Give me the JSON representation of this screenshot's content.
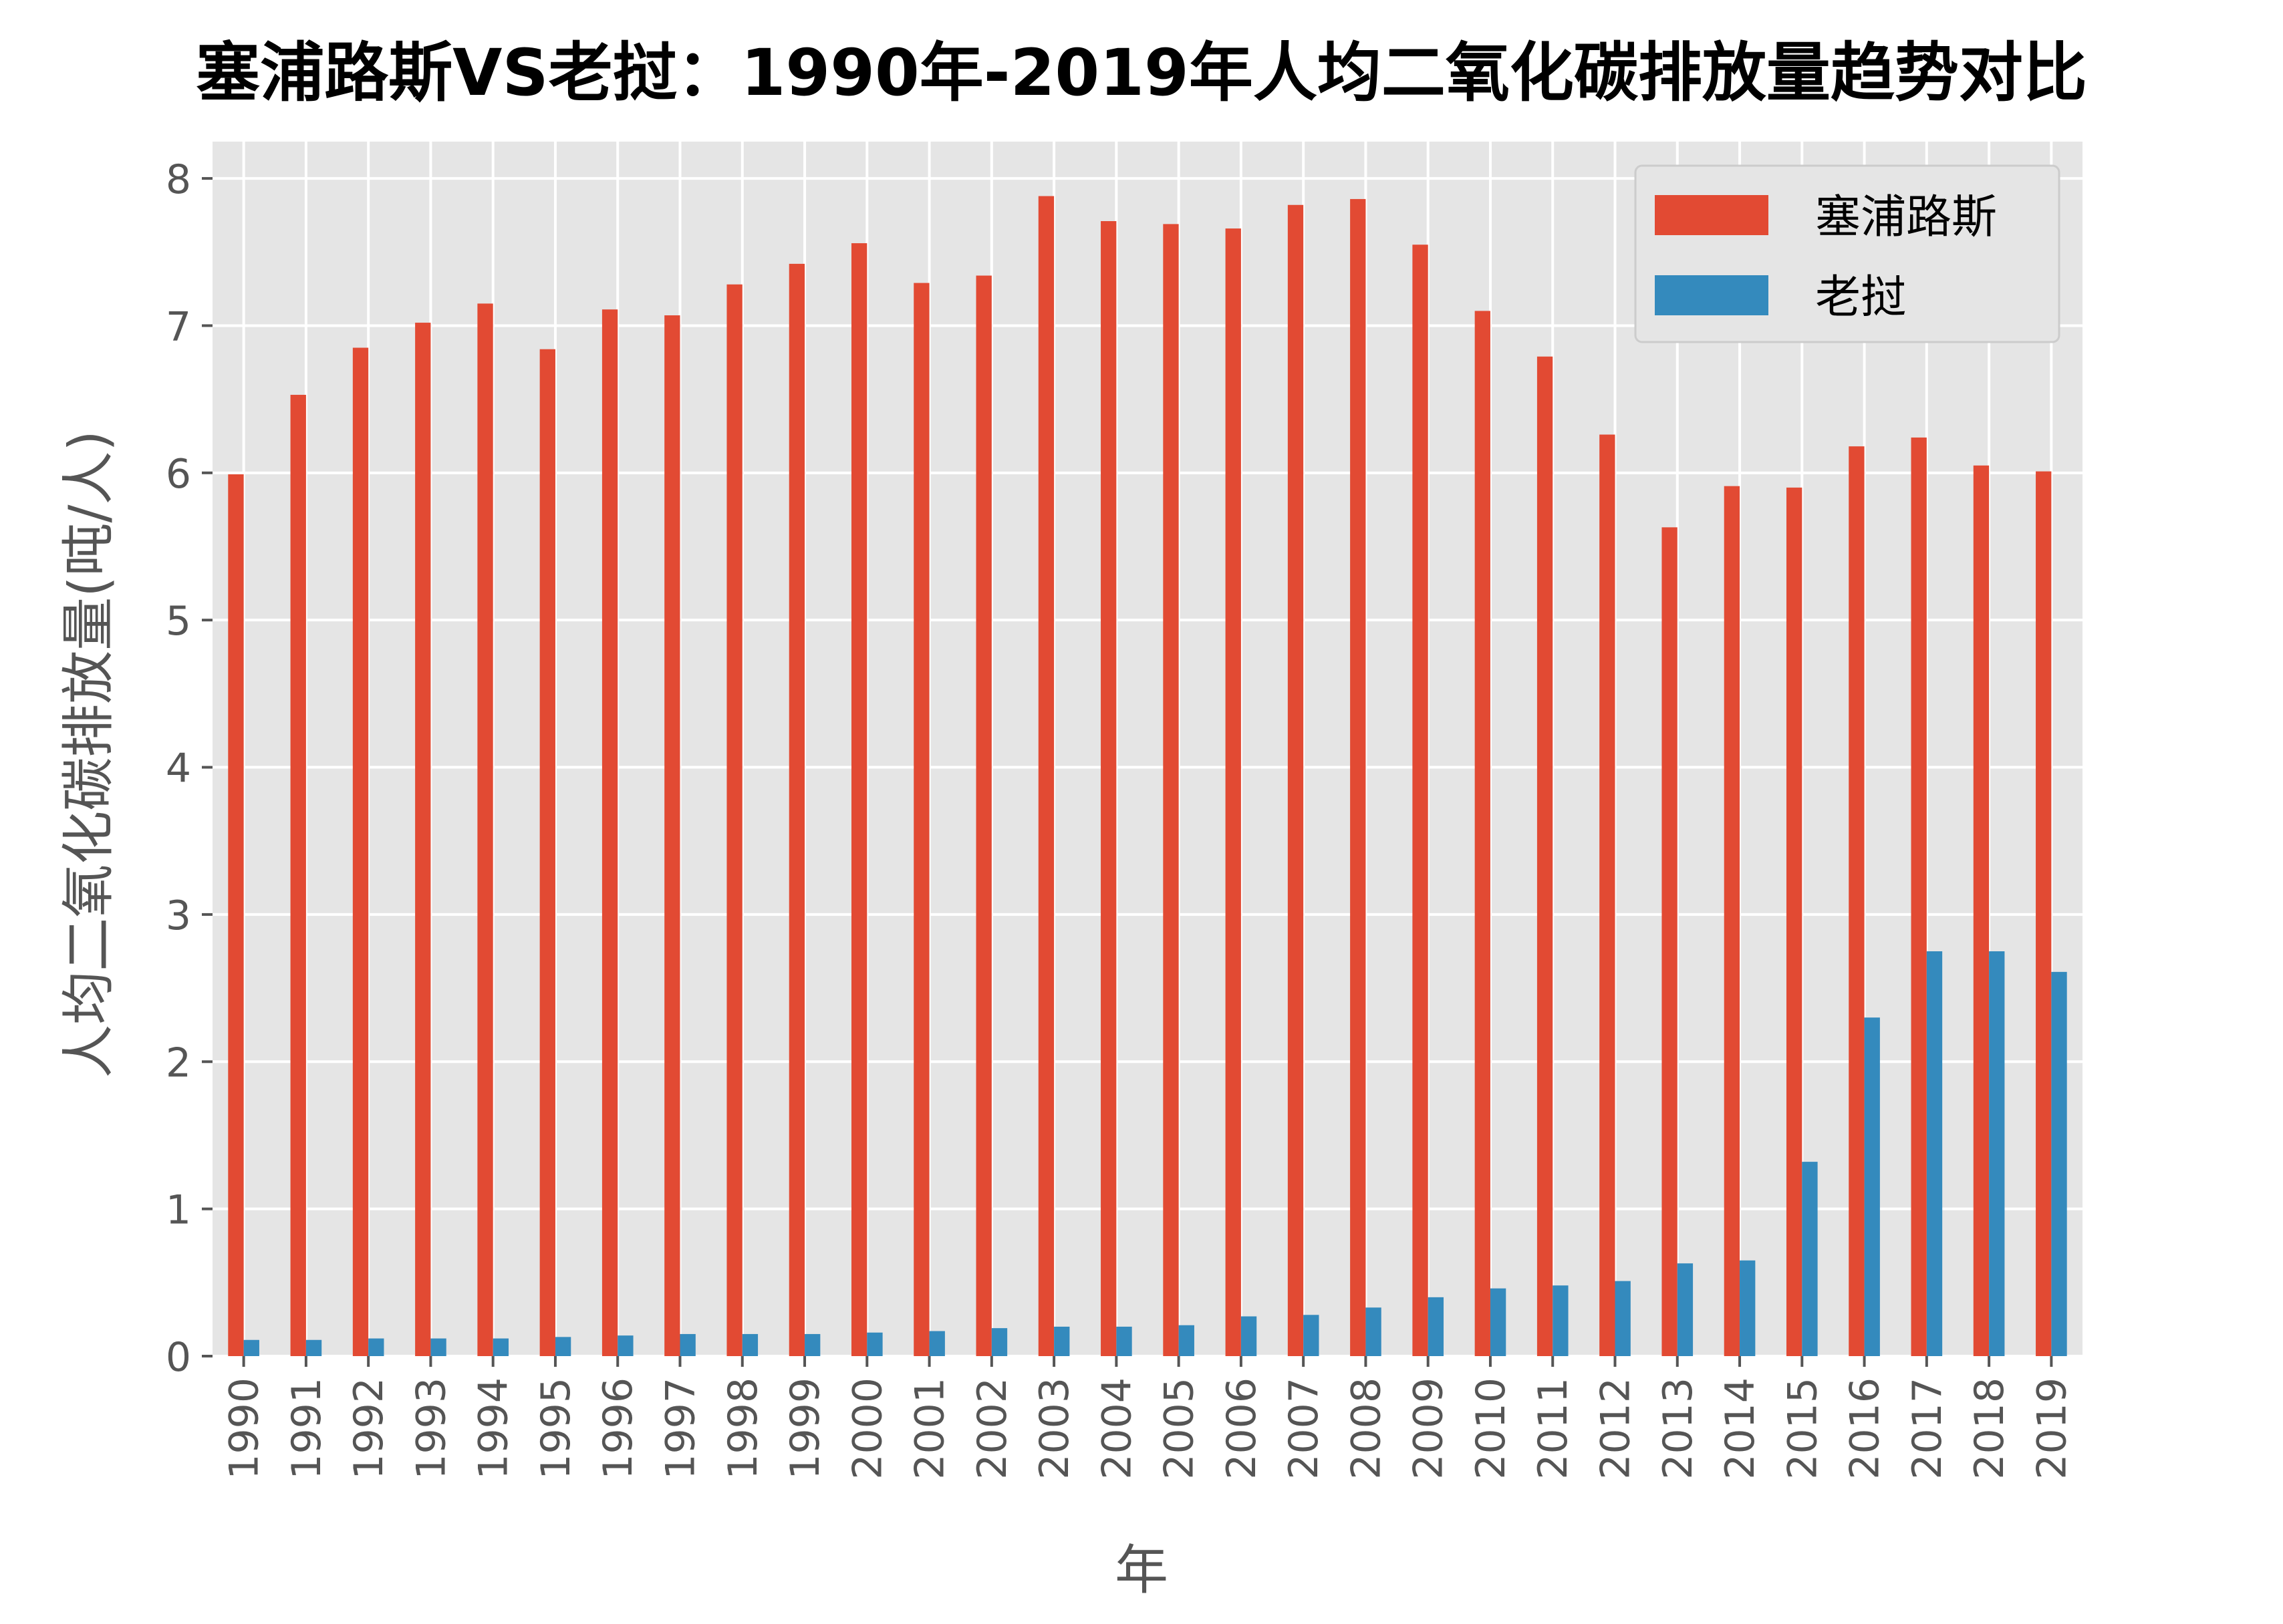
{
  "chart_data": {
    "type": "bar",
    "title": "塞浦路斯VS老挝：1990年-2019年人均二氧化碳排放量趋势对比",
    "xlabel": "年",
    "ylabel": "人均二氧化碳排放量(吨/人)",
    "ylim": [
      0,
      8.25
    ],
    "yticks": [
      "0",
      "1",
      "2",
      "3",
      "4",
      "5",
      "6",
      "7",
      "8"
    ],
    "grid": true,
    "legend_position": "top-right",
    "categories": [
      "1990",
      "1991",
      "1992",
      "1993",
      "1994",
      "1995",
      "1996",
      "1997",
      "1998",
      "1999",
      "2000",
      "2001",
      "2002",
      "2003",
      "2004",
      "2005",
      "2006",
      "2007",
      "2008",
      "2009",
      "2010",
      "2011",
      "2012",
      "2013",
      "2014",
      "2015",
      "2016",
      "2017",
      "2018",
      "2019"
    ],
    "series": [
      {
        "name": "塞浦路斯",
        "color": "#E24A33",
        "values": [
          5.99,
          6.53,
          6.85,
          7.02,
          7.15,
          6.84,
          7.11,
          7.07,
          7.28,
          7.42,
          7.56,
          7.29,
          7.34,
          7.88,
          7.71,
          7.69,
          7.66,
          7.82,
          7.86,
          7.55,
          7.1,
          6.79,
          6.26,
          5.63,
          5.91,
          5.9,
          6.18,
          6.24,
          6.05,
          6.01
        ]
      },
      {
        "name": "老挝",
        "color": "#348ABD",
        "values": [
          0.11,
          0.11,
          0.12,
          0.12,
          0.12,
          0.13,
          0.14,
          0.15,
          0.15,
          0.15,
          0.16,
          0.17,
          0.19,
          0.2,
          0.2,
          0.21,
          0.27,
          0.28,
          0.33,
          0.4,
          0.46,
          0.48,
          0.51,
          0.63,
          0.65,
          1.32,
          2.3,
          2.75,
          2.75,
          2.61
        ]
      }
    ]
  }
}
